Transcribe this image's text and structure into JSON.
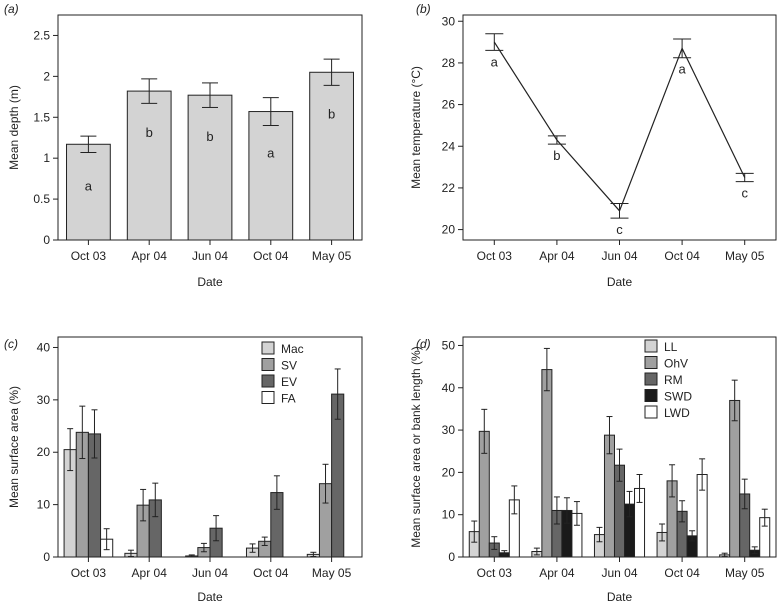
{
  "chart_data": [
    {
      "panel": "(a)",
      "type": "bar",
      "xlabel": "Date",
      "ylabel": "Mean depth (m)",
      "categories": [
        "Oct 03",
        "Apr 04",
        "Jun 04",
        "Oct 04",
        "May 05"
      ],
      "values": [
        1.17,
        1.82,
        1.77,
        1.57,
        2.05
      ],
      "errors": [
        0.1,
        0.15,
        0.15,
        0.17,
        0.16
      ],
      "sig_letters": [
        "a",
        "b",
        "b",
        "a",
        "b"
      ],
      "ylim": [
        0,
        2.75
      ],
      "yticks": [
        0,
        0.5,
        1,
        1.5,
        2,
        2.5
      ],
      "ytick_labels": [
        "0",
        "0.5",
        "1",
        "1.5",
        "2",
        "2.5"
      ],
      "color": "#d3d3d3"
    },
    {
      "panel": "(b)",
      "type": "line",
      "xlabel": "Date",
      "ylabel": "Mean temperature (°C)",
      "categories": [
        "Oct 03",
        "Apr 04",
        "Jun 04",
        "Oct 04",
        "May 05"
      ],
      "values": [
        29.0,
        24.3,
        20.9,
        28.7,
        22.5
      ],
      "errors": [
        0.4,
        0.2,
        0.35,
        0.45,
        0.2
      ],
      "sig_letters": [
        "a",
        "b",
        "c",
        "a",
        "c"
      ],
      "ylim": [
        19.5,
        30.3
      ],
      "yticks": [
        20,
        22,
        24,
        26,
        28,
        30
      ],
      "ytick_labels": [
        "20",
        "22",
        "24",
        "26",
        "28",
        "30"
      ],
      "color": "#222222"
    },
    {
      "panel": "(c)",
      "type": "bar",
      "xlabel": "Date",
      "ylabel": "Mean surface area (%)",
      "categories": [
        "Oct 03",
        "Apr 04",
        "Jun 04",
        "Oct 04",
        "May 05"
      ],
      "series": [
        {
          "name": "Mac",
          "color": "#d3d3d3",
          "values": [
            20.5,
            0.7,
            0.2,
            1.7,
            0.5
          ],
          "errors": [
            4.0,
            0.6,
            0.2,
            0.8,
            0.4
          ]
        },
        {
          "name": "SV",
          "color": "#a0a0a0",
          "values": [
            23.8,
            9.9,
            1.8,
            3.0,
            14.0
          ],
          "errors": [
            5.0,
            3.0,
            0.8,
            0.8,
            3.7
          ]
        },
        {
          "name": "EV",
          "color": "#666666",
          "values": [
            23.5,
            10.9,
            5.5,
            12.3,
            31.1
          ],
          "errors": [
            4.6,
            3.2,
            2.4,
            3.2,
            4.8
          ]
        },
        {
          "name": "FA",
          "color": "#ffffff",
          "values": [
            3.4,
            0,
            0,
            0,
            0
          ],
          "errors": [
            2.0,
            0,
            0,
            0,
            0
          ]
        }
      ],
      "ylim": [
        0,
        42
      ],
      "yticks": [
        0,
        10,
        20,
        30,
        40
      ],
      "ytick_labels": [
        "0",
        "10",
        "20",
        "30",
        "40"
      ]
    },
    {
      "panel": "(d)",
      "type": "bar",
      "xlabel": "Date",
      "ylabel": "Mean surface area or bank length (%)",
      "categories": [
        "Oct 03",
        "Apr 04",
        "Jun 04",
        "Oct 04",
        "May 05"
      ],
      "series": [
        {
          "name": "LL",
          "color": "#d3d3d3",
          "values": [
            6.0,
            1.3,
            5.3,
            5.8,
            0.5
          ],
          "errors": [
            2.5,
            0.8,
            1.7,
            2.0,
            0.4
          ]
        },
        {
          "name": "OhV",
          "color": "#a0a0a0",
          "values": [
            29.7,
            44.3,
            28.8,
            18.0,
            37.0
          ],
          "errors": [
            5.2,
            5.0,
            4.4,
            3.8,
            4.8
          ]
        },
        {
          "name": "RM",
          "color": "#666666",
          "values": [
            3.3,
            11.0,
            21.7,
            10.8,
            14.9
          ],
          "errors": [
            1.5,
            3.2,
            3.8,
            2.5,
            3.5
          ]
        },
        {
          "name": "SWD",
          "color": "#1a1a1a",
          "values": [
            1.0,
            11.0,
            12.5,
            5.0,
            1.6
          ],
          "errors": [
            0.5,
            3.0,
            3.0,
            1.2,
            0.8
          ]
        },
        {
          "name": "LWD",
          "color": "#ffffff",
          "values": [
            13.5,
            10.3,
            16.2,
            19.5,
            9.3
          ],
          "errors": [
            3.3,
            2.8,
            3.3,
            3.7,
            2.0
          ]
        }
      ],
      "ylim": [
        0,
        52
      ],
      "yticks": [
        0,
        10,
        20,
        30,
        40,
        50
      ],
      "ytick_labels": [
        "0",
        "10",
        "20",
        "30",
        "40",
        "50"
      ]
    }
  ]
}
